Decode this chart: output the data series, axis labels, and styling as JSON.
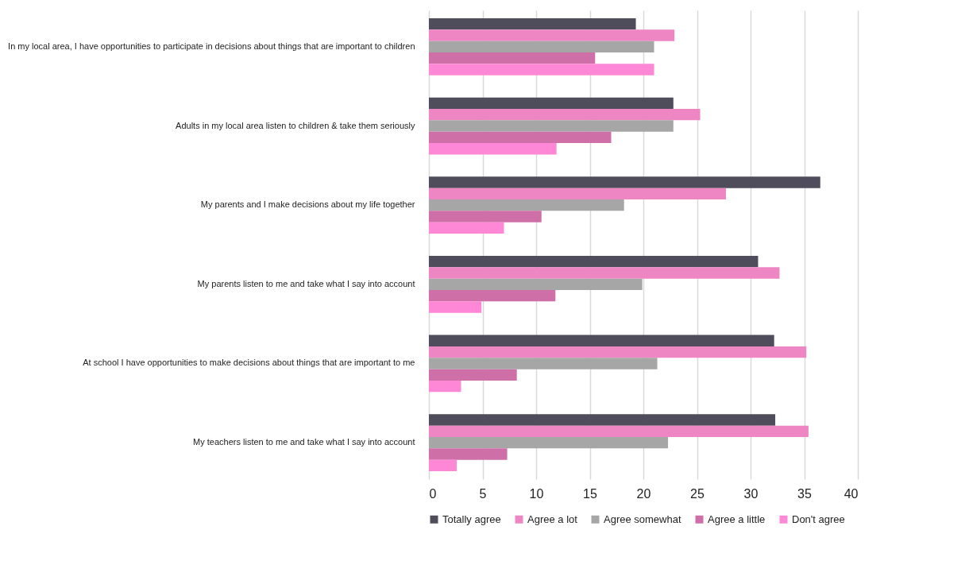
{
  "chart_data": {
    "type": "bar",
    "orientation": "horizontal",
    "categories": [
      "In my local area, I have opportunities to participate in decisions about things that are important to children",
      "Adults in my local area listen to children & take them seriously",
      "My parents and I make decisions about my life together",
      "My parents listen to me and take what I say into account",
      "At school I have opportunities to make decisions about things that are important to me",
      "My teachers listen to me and take what I say into account"
    ],
    "series": [
      {
        "name": "Totally agree",
        "color": "#4f4c5b",
        "values": [
          19.3,
          22.8,
          36.5,
          30.7,
          32.2,
          32.3
        ]
      },
      {
        "name": "Agree a lot",
        "color": "#ee86c4",
        "values": [
          22.9,
          25.3,
          27.7,
          32.7,
          35.2,
          35.4
        ]
      },
      {
        "name": "Agree somewhat",
        "color": "#a6a6a6",
        "values": [
          21.0,
          22.8,
          18.2,
          19.9,
          21.3,
          22.3
        ]
      },
      {
        "name": "Agree a little",
        "color": "#cf6fa7",
        "values": [
          15.5,
          17.0,
          10.5,
          11.8,
          8.2,
          7.3
        ]
      },
      {
        "name": "Don't agree",
        "color": "#ff88d6",
        "values": [
          21.0,
          11.9,
          7.0,
          4.9,
          3.0,
          2.6
        ]
      }
    ],
    "xlim": [
      0,
      40
    ],
    "xticks": [
      0,
      5,
      10,
      15,
      20,
      25,
      30,
      35,
      40
    ],
    "grid": "x",
    "legend": "bottom"
  }
}
